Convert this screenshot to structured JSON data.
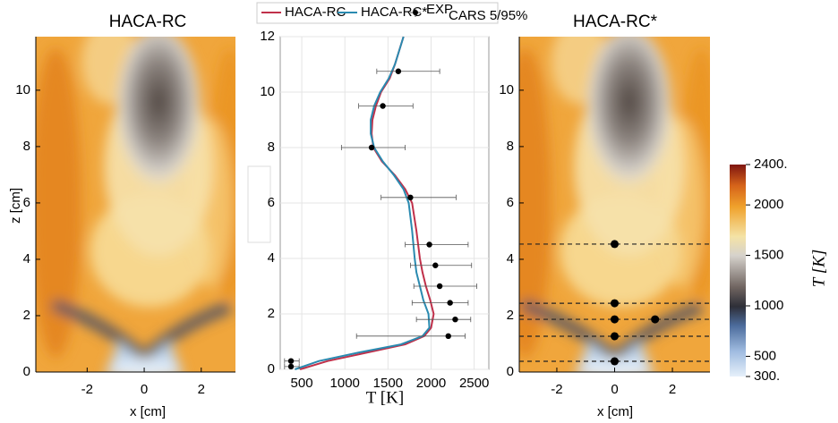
{
  "chart_data": [
    {
      "type": "contour",
      "title": "HACA-RC",
      "xlabel": "x [cm]",
      "ylabel": "z [cm]",
      "xlim": [
        -3.8,
        3.2
      ],
      "ylim": [
        0,
        11.9
      ],
      "xticks": [
        -2,
        0,
        2
      ],
      "yticks": [
        0,
        2,
        4,
        6,
        8,
        10
      ]
    },
    {
      "type": "line",
      "xlabel": "T [K]",
      "xlim": [
        250,
        2670
      ],
      "ylim": [
        0,
        12
      ],
      "xticks": [
        500,
        1000,
        1500,
        2000,
        2500
      ],
      "yticks": [
        0,
        2,
        4,
        6,
        8,
        10,
        12
      ],
      "grid": true,
      "legend": "top",
      "series": [
        {
          "name": "HACA-RC",
          "color": "#c0304a",
          "z": [
            0,
            0.3,
            0.6,
            0.9,
            1.2,
            1.5,
            2,
            2.5,
            3,
            3.5,
            4,
            5,
            6,
            6.5,
            7,
            7.5,
            8,
            8.5,
            9,
            9.5,
            10,
            10.5,
            11,
            11.5,
            12
          ],
          "values": [
            480,
            800,
            1250,
            1700,
            1920,
            2000,
            2030,
            1990,
            1940,
            1900,
            1870,
            1830,
            1780,
            1700,
            1580,
            1430,
            1330,
            1310,
            1320,
            1360,
            1420,
            1520,
            1580,
            1630,
            1680
          ]
        },
        {
          "name": "HACA-RC*",
          "color": "#2a8ab0",
          "z": [
            0,
            0.3,
            0.6,
            0.9,
            1.2,
            1.5,
            2,
            2.5,
            3,
            3.5,
            4,
            5,
            6,
            6.5,
            7,
            7.5,
            8,
            8.5,
            9,
            9.5,
            10,
            10.5,
            11,
            11.5,
            12
          ],
          "values": [
            420,
            700,
            1150,
            1650,
            1900,
            1980,
            1970,
            1910,
            1870,
            1830,
            1810,
            1780,
            1740,
            1680,
            1570,
            1440,
            1340,
            1300,
            1300,
            1340,
            1410,
            1510,
            1580,
            1630,
            1680
          ]
        },
        {
          "name": "EXP",
          "subscript": "CARS 5/95%",
          "color": "#000000",
          "z": [
            0.1,
            0.3,
            1.2,
            1.8,
            2.4,
            3.0,
            3.75,
            4.5,
            6.2,
            8.0,
            9.5,
            10.75
          ],
          "values": [
            375,
            375,
            2200,
            2280,
            2220,
            2100,
            2050,
            1980,
            1760,
            1310,
            1440,
            1620
          ],
          "lower": [
            300,
            300,
            1135,
            1830,
            1780,
            1800,
            1760,
            1700,
            1420,
            960,
            1160,
            1370
          ],
          "upper": [
            470,
            470,
            2395,
            2460,
            2430,
            2530,
            2470,
            2430,
            2290,
            1700,
            1790,
            2100
          ]
        }
      ]
    },
    {
      "type": "contour",
      "title": "HACA-RC*",
      "xlabel": "x [cm]",
      "xlim": [
        -3.3,
        3.3
      ],
      "ylim": [
        0,
        11.9
      ],
      "xticks": [
        -2,
        0,
        2
      ],
      "yticks": [
        0,
        2,
        4,
        6,
        8,
        10
      ],
      "measurement_z": [
        0.38,
        1.27,
        1.87,
        2.44,
        4.54
      ],
      "points": {
        "x": [
          0,
          0,
          0,
          1.4,
          0,
          0
        ],
        "z": [
          0.38,
          1.27,
          1.87,
          1.87,
          2.44,
          4.54
        ]
      }
    },
    {
      "type": "colorbar",
      "label": "T [K]",
      "lim": [
        300,
        2400
      ],
      "ticks": [
        {
          "value": 300,
          "label": "300."
        },
        500,
        1000,
        1500,
        2000,
        {
          "value": 2400,
          "label": "2400."
        }
      ]
    }
  ]
}
